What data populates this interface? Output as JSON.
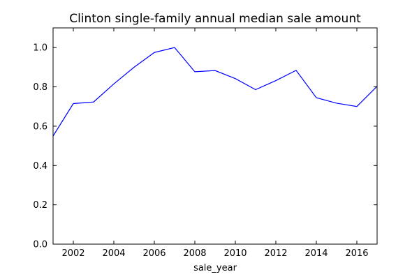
{
  "chart_data": {
    "type": "line",
    "title": "Clinton single-family annual median sale amount",
    "xlabel": "sale_year",
    "ylabel": "",
    "xlim": [
      2001,
      2017
    ],
    "ylim": [
      0.0,
      1.1
    ],
    "xticks": [
      2002,
      2004,
      2006,
      2008,
      2010,
      2012,
      2014,
      2016
    ],
    "yticks": [
      0.0,
      0.2,
      0.4,
      0.6,
      0.8,
      1.0
    ],
    "xtick_labels": [
      "2002",
      "2004",
      "2006",
      "2008",
      "2010",
      "2012",
      "2014",
      "2016"
    ],
    "ytick_labels": [
      "0.0",
      "0.2",
      "0.4",
      "0.6",
      "0.8",
      "1.0"
    ],
    "grid": false,
    "series": [
      {
        "color": "#0000ff",
        "x": [
          2001,
          2002,
          2003,
          2004,
          2005,
          2006,
          2007,
          2008,
          2009,
          2010,
          2011,
          2012,
          2013,
          2014,
          2015,
          2016,
          2017
        ],
        "y": [
          0.55,
          0.715,
          0.723,
          0.815,
          0.9,
          0.975,
          1.0,
          0.877,
          0.883,
          0.842,
          0.786,
          0.832,
          0.884,
          0.745,
          0.717,
          0.7,
          0.803
        ]
      }
    ]
  }
}
